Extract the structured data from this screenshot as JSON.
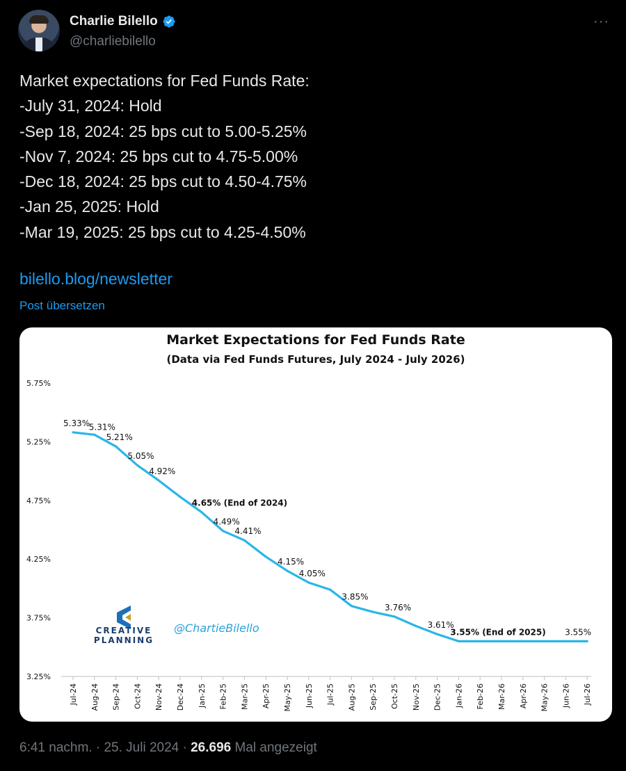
{
  "author": {
    "name": "Charlie Bilello",
    "handle": "@charliebilello"
  },
  "icons": {
    "verified": "verified-badge-icon",
    "more": "more-options-icon"
  },
  "accent_color": "#1d9bf0",
  "tweet": {
    "lines": [
      "Market expectations for Fed Funds Rate:",
      "-July 31, 2024: Hold",
      "-Sep 18, 2024: 25 bps cut to 5.00-5.25%",
      "-Nov 7, 2024: 25 bps cut to 4.75-5.00%",
      "-Dec 18, 2024: 25 bps cut to 4.50-4.75%",
      "-Jan 25, 2025: Hold",
      "-Mar 19, 2025: 25 bps cut to 4.25-4.50%"
    ],
    "link": "bilello.blog/newsletter",
    "translate": "Post übersetzen"
  },
  "meta": {
    "time": "6:41 nachm.",
    "sep1": "·",
    "date": "25. Juli 2024",
    "sep2": "·",
    "views": "26.696",
    "views_label": "Mal angezeigt"
  },
  "chart_data": {
    "type": "line",
    "title": "Market Expectations for Fed Funds Rate",
    "subtitle": "(Data via Fed Funds Futures, July 2024 - July 2026)",
    "x": [
      "Jul-24",
      "Aug-24",
      "Sep-24",
      "Oct-24",
      "Nov-24",
      "Dec-24",
      "Jan-25",
      "Feb-25",
      "Mar-25",
      "Apr-25",
      "May-25",
      "Jun-25",
      "Jul-25",
      "Aug-25",
      "Sep-25",
      "Oct-25",
      "Nov-25",
      "Dec-25",
      "Jan-26",
      "Feb-26",
      "Mar-26",
      "Apr-26",
      "May-26",
      "Jun-26",
      "Jul-26"
    ],
    "series": [
      {
        "values": [
          5.33,
          5.31,
          5.21,
          5.05,
          4.92,
          4.78,
          4.65,
          4.49,
          4.41,
          4.27,
          4.15,
          4.05,
          3.99,
          3.85,
          3.8,
          3.76,
          3.68,
          3.61,
          3.55,
          3.55,
          3.55,
          3.55,
          3.55,
          3.55,
          3.55
        ]
      }
    ],
    "labels": [
      {
        "i": 0,
        "text": "5.33%"
      },
      {
        "i": 1,
        "text": "5.31%"
      },
      {
        "i": 2,
        "text": "5.21%"
      },
      {
        "i": 3,
        "text": "5.05%"
      },
      {
        "i": 4,
        "text": "4.92%"
      },
      {
        "i": 6,
        "text": "4.65% (End of 2024)",
        "bold": true
      },
      {
        "i": 7,
        "text": "4.49%"
      },
      {
        "i": 8,
        "text": "4.41%"
      },
      {
        "i": 10,
        "text": "4.15%"
      },
      {
        "i": 11,
        "text": "4.05%"
      },
      {
        "i": 13,
        "text": "3.85%"
      },
      {
        "i": 15,
        "text": "3.76%"
      },
      {
        "i": 17,
        "text": "3.61%"
      },
      {
        "i": 18,
        "text": "3.55% (End of 2025)",
        "bold": true
      },
      {
        "i": 24,
        "text": "3.55%"
      }
    ],
    "yticks": [
      {
        "v": 5.75,
        "label": "5.75%"
      },
      {
        "v": 5.25,
        "label": "5.25%"
      },
      {
        "v": 4.75,
        "label": "4.75%"
      },
      {
        "v": 4.25,
        "label": "4.25%"
      },
      {
        "v": 3.75,
        "label": "3.75%"
      },
      {
        "v": 3.25,
        "label": "3.25%"
      }
    ],
    "ylim": [
      3.25,
      5.75
    ],
    "grid": false,
    "line_color": "#29b6e8",
    "watermark_handle": "@ChartieBilello",
    "logo_line1": "CREATIVE",
    "logo_line2": "PLANNING"
  }
}
